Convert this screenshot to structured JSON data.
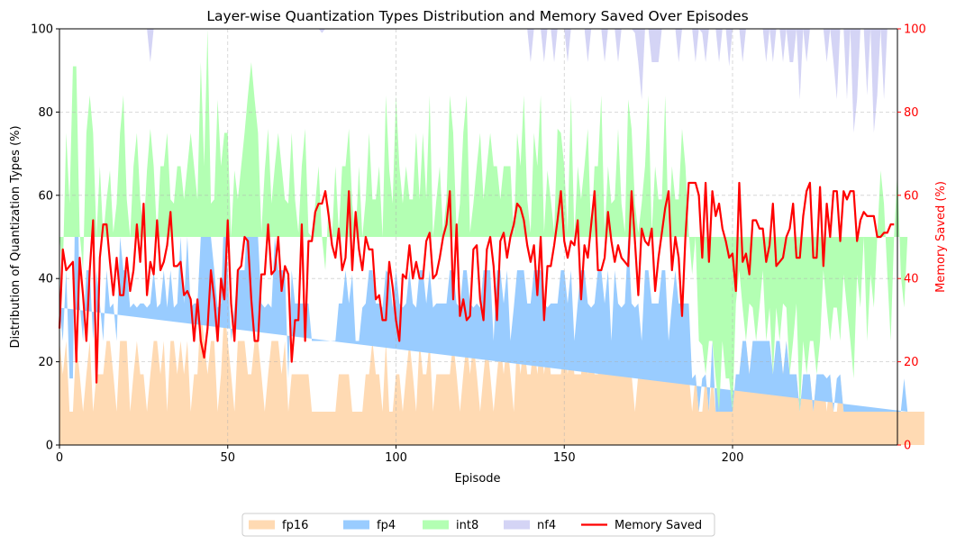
{
  "chart_data": {
    "type": "area",
    "title": "Layer-wise Quantization Types Distribution and Memory Saved Over Episodes",
    "xlabel": "Episode",
    "ylabel": "Distribution of Quantization Types (%)",
    "y2label": "Memory Saved (%)",
    "xlim": [
      0,
      249
    ],
    "ylim": [
      0,
      100
    ],
    "y2lim": [
      0,
      100
    ],
    "xticks": [
      0,
      50,
      100,
      150,
      200
    ],
    "yticks": [
      0,
      20,
      40,
      60,
      80,
      100
    ],
    "y2ticks": [
      0,
      20,
      40,
      60,
      80,
      100
    ],
    "grid": true,
    "legend_position": "bottom-center",
    "episodes_start": 0,
    "episodes_step": 1,
    "series": [
      {
        "name": "fp16",
        "color": "#ffdab3",
        "kind": "stacked-area",
        "values": [
          25,
          17,
          25,
          8,
          8,
          25,
          17,
          8,
          17,
          25,
          8,
          17,
          17,
          17,
          25,
          25,
          17,
          8,
          25,
          25,
          25,
          8,
          17,
          25,
          17,
          17,
          8,
          17,
          25,
          25,
          17,
          25,
          8,
          25,
          25,
          17,
          25,
          17,
          25,
          8,
          17,
          17,
          33,
          25,
          17,
          25,
          25,
          8,
          17,
          33,
          25,
          17,
          8,
          25,
          25,
          25,
          17,
          17,
          25,
          25,
          17,
          8,
          17,
          25,
          25,
          25,
          17,
          25,
          8,
          17,
          17,
          17,
          17,
          17,
          17,
          8,
          8,
          8,
          8,
          8,
          8,
          8,
          8,
          17,
          17,
          17,
          17,
          8,
          8,
          8,
          8,
          17,
          17,
          25,
          17,
          17,
          8,
          25,
          8,
          8,
          17,
          17,
          8,
          17,
          25,
          17,
          8,
          25,
          17,
          17,
          25,
          8,
          17,
          17,
          17,
          17,
          17,
          25,
          17,
          8,
          17,
          25,
          17,
          25,
          17,
          8,
          17,
          25,
          17,
          8,
          17,
          25,
          17,
          25,
          17,
          8,
          25,
          17,
          25,
          17,
          17,
          25,
          17,
          25,
          17,
          25,
          17,
          17,
          17,
          17,
          25,
          17,
          25,
          17,
          17,
          17,
          25,
          17,
          25,
          17,
          17,
          25,
          17,
          25,
          17,
          17,
          17,
          25,
          17,
          25,
          17,
          8,
          17,
          17,
          25,
          17,
          17,
          17,
          17,
          17,
          25,
          17,
          17,
          25,
          17,
          17,
          17,
          17,
          8,
          17,
          8,
          8,
          17,
          8,
          17,
          8,
          8,
          8,
          8,
          8,
          8,
          17,
          17,
          25,
          25,
          17,
          25,
          17,
          25,
          25,
          17,
          25,
          17,
          17,
          25,
          17,
          25,
          17,
          17,
          17,
          8,
          17,
          17,
          17,
          8,
          17,
          17,
          17,
          8,
          17,
          8,
          8,
          17,
          8,
          8,
          8,
          8,
          8,
          8,
          8,
          8,
          8,
          8,
          8,
          8,
          8,
          8,
          8,
          8,
          8,
          8,
          8,
          8,
          8,
          8,
          8,
          8,
          8
        ]
      },
      {
        "name": "fp4",
        "color": "#99ccff",
        "kind": "stacked-area",
        "values": [
          8,
          8,
          17,
          8,
          8,
          58,
          17,
          17,
          25,
          17,
          17,
          25,
          17,
          8,
          17,
          8,
          17,
          17,
          25,
          17,
          17,
          25,
          17,
          8,
          17,
          17,
          25,
          17,
          17,
          8,
          17,
          17,
          25,
          17,
          8,
          17,
          25,
          17,
          25,
          25,
          17,
          17,
          17,
          25,
          58,
          25,
          17,
          25,
          17,
          25,
          17,
          8,
          25,
          17,
          17,
          17,
          42,
          58,
          25,
          25,
          17,
          25,
          17,
          8,
          25,
          17,
          25,
          17,
          8,
          25,
          17,
          17,
          17,
          17,
          17,
          17,
          17,
          17,
          17,
          17,
          17,
          17,
          17,
          17,
          17,
          25,
          17,
          33,
          17,
          17,
          25,
          17,
          25,
          17,
          17,
          17,
          25,
          17,
          33,
          25,
          25,
          17,
          25,
          17,
          17,
          17,
          25,
          17,
          25,
          17,
          17,
          25,
          17,
          17,
          17,
          17,
          25,
          17,
          17,
          25,
          25,
          17,
          17,
          8,
          17,
          25,
          25,
          17,
          25,
          17,
          25,
          17,
          17,
          17,
          8,
          25,
          17,
          25,
          17,
          17,
          17,
          17,
          25,
          17,
          17,
          8,
          17,
          17,
          17,
          25,
          17,
          17,
          17,
          8,
          17,
          25,
          17,
          17,
          8,
          17,
          25,
          17,
          17,
          17,
          8,
          25,
          17,
          8,
          17,
          25,
          17,
          25,
          17,
          8,
          17,
          25,
          17,
          17,
          17,
          25,
          17,
          8,
          17,
          17,
          17,
          17,
          17,
          17,
          8,
          0,
          0,
          8,
          0,
          0,
          8,
          0,
          0,
          0,
          0,
          0,
          0,
          0,
          0,
          0,
          0,
          0,
          0,
          8,
          0,
          0,
          8,
          0,
          0,
          8,
          0,
          0,
          0,
          0,
          0,
          0,
          0,
          0,
          0,
          0,
          0,
          0,
          0,
          0,
          8,
          0,
          0,
          8,
          0,
          0,
          0,
          0,
          0,
          0,
          0,
          0,
          0,
          0,
          0,
          0,
          0,
          0,
          0,
          0,
          0,
          0,
          0,
          8,
          0
        ]
      },
      {
        "name": "int8",
        "color": "#b3ffb3",
        "kind": "stacked-area",
        "values": [
          17,
          17,
          33,
          42,
          75,
          8,
          17,
          17,
          33,
          42,
          50,
          8,
          33,
          25,
          17,
          33,
          17,
          33,
          25,
          42,
          17,
          17,
          33,
          42,
          25,
          17,
          33,
          42,
          25,
          17,
          33,
          25,
          42,
          17,
          25,
          33,
          17,
          25,
          17,
          42,
          33,
          25,
          42,
          17,
          25,
          8,
          17,
          50,
          33,
          17,
          33,
          25,
          33,
          17,
          25,
          33,
          25,
          17,
          33,
          25,
          17,
          33,
          42,
          25,
          17,
          33,
          25,
          17,
          42,
          33,
          25,
          17,
          33,
          42,
          17,
          25,
          33,
          42,
          25,
          17,
          33,
          25,
          42,
          17,
          33,
          25,
          42,
          17,
          25,
          42,
          17,
          25,
          33,
          17,
          25,
          33,
          17,
          42,
          25,
          25,
          42,
          33,
          25,
          33,
          17,
          25,
          42,
          17,
          33,
          25,
          42,
          17,
          25,
          33,
          17,
          25,
          42,
          33,
          17,
          25,
          33,
          42,
          17,
          25,
          33,
          42,
          17,
          25,
          33,
          42,
          25,
          17,
          33,
          25,
          42,
          17,
          33,
          25,
          42,
          25,
          17,
          33,
          25,
          42,
          17,
          33,
          25,
          17,
          42,
          33,
          25,
          17,
          42,
          25,
          33,
          17,
          25,
          42,
          17,
          33,
          25,
          42,
          17,
          25,
          33,
          17,
          42,
          25,
          17,
          33,
          42,
          25,
          17,
          33,
          25,
          42,
          17,
          33,
          25,
          17,
          42,
          25,
          33,
          17,
          25,
          42,
          33,
          17,
          25,
          33,
          17,
          8,
          0,
          17,
          0,
          8,
          0,
          17,
          8,
          8,
          0,
          17,
          25,
          8,
          0,
          17,
          8,
          0,
          8,
          17,
          0,
          8,
          0,
          8,
          0,
          17,
          8,
          0,
          8,
          17,
          0,
          8,
          0,
          8,
          17,
          0,
          8,
          25,
          17,
          8,
          25,
          17,
          8,
          33,
          25,
          17,
          8,
          33,
          25,
          42,
          17,
          33,
          25,
          42,
          58,
          50,
          33,
          17,
          42,
          58,
          33,
          17,
          42,
          25,
          58,
          66
        ]
      },
      {
        "name": "nf4",
        "color": "#d4d4f5",
        "kind": "stacked-area",
        "values": [
          50,
          58,
          25,
          42,
          9,
          9,
          49,
          58,
          25,
          16,
          25,
          50,
          33,
          50,
          41,
          34,
          49,
          42,
          25,
          16,
          41,
          50,
          33,
          25,
          41,
          49,
          34,
          16,
          33,
          50,
          33,
          33,
          25,
          41,
          42,
          33,
          33,
          41,
          33,
          25,
          33,
          41,
          8,
          33,
          0,
          42,
          41,
          17,
          33,
          25,
          25,
          50,
          34,
          41,
          41,
          25,
          16,
          8,
          17,
          25,
          49,
          34,
          24,
          42,
          33,
          25,
          41,
          41,
          42,
          25,
          41,
          49,
          33,
          24,
          49,
          50,
          42,
          33,
          49,
          58,
          42,
          50,
          33,
          49,
          33,
          33,
          24,
          42,
          50,
          33,
          50,
          41,
          25,
          41,
          41,
          33,
          50,
          16,
          34,
          42,
          16,
          33,
          42,
          33,
          41,
          41,
          25,
          41,
          25,
          50,
          16,
          50,
          41,
          33,
          49,
          41,
          16,
          25,
          49,
          42,
          25,
          16,
          49,
          42,
          33,
          25,
          41,
          33,
          25,
          33,
          41,
          41,
          33,
          33,
          33,
          50,
          25,
          33,
          16,
          41,
          41,
          25,
          33,
          16,
          41,
          34,
          42,
          41,
          25,
          25,
          33,
          41,
          16,
          50,
          33,
          41,
          33,
          16,
          50,
          33,
          33,
          16,
          41,
          33,
          50,
          41,
          16,
          42,
          49,
          33,
          33,
          41,
          41,
          25,
          33,
          33,
          41,
          25,
          33,
          41,
          16,
          50,
          33,
          41,
          33,
          25,
          33,
          50,
          59,
          42,
          83,
          75,
          75,
          83,
          76,
          92,
          84,
          75,
          92,
          75,
          92,
          75,
          75,
          59,
          75,
          66,
          75,
          75,
          75,
          67,
          67,
          75,
          75,
          83,
          75,
          58,
          75,
          75,
          67,
          75,
          75,
          92,
          75,
          75,
          75,
          92,
          75,
          67,
          59,
          75,
          59,
          50,
          84,
          75,
          50,
          75,
          59,
          42,
          84,
          50,
          59,
          92,
          42,
          34,
          42,
          25,
          59,
          75,
          50,
          34,
          59,
          76,
          50,
          33,
          34,
          26
        ]
      },
      {
        "name": "Memory Saved",
        "color": "#ff0000",
        "kind": "line",
        "axis": "right",
        "values": [
          28,
          47,
          42,
          43,
          44,
          20,
          45,
          36,
          25,
          42,
          54,
          15,
          45,
          53,
          53,
          44,
          36,
          45,
          36,
          36,
          45,
          37,
          42,
          53,
          44,
          58,
          36,
          44,
          41,
          54,
          42,
          44,
          48,
          56,
          43,
          43,
          44,
          36,
          37,
          35,
          25,
          35,
          25,
          21,
          28,
          42,
          35,
          25,
          40,
          35,
          54,
          34,
          25,
          42,
          43,
          50,
          49,
          35,
          25,
          25,
          41,
          41,
          53,
          41,
          42,
          50,
          37,
          43,
          41,
          20,
          30,
          30,
          53,
          25,
          49,
          49,
          56,
          58,
          58,
          61,
          55,
          48,
          45,
          52,
          42,
          45,
          61,
          42,
          56,
          47,
          42,
          50,
          47,
          47,
          35,
          36,
          30,
          30,
          44,
          38,
          30,
          25,
          41,
          40,
          48,
          40,
          44,
          40,
          40,
          49,
          51,
          40,
          41,
          45,
          50,
          53,
          61,
          35,
          53,
          31,
          35,
          30,
          31,
          47,
          48,
          35,
          30,
          47,
          50,
          43,
          30,
          49,
          51,
          45,
          50,
          53,
          58,
          57,
          54,
          48,
          44,
          48,
          36,
          50,
          30,
          43,
          43,
          48,
          54,
          61,
          49,
          45,
          49,
          48,
          54,
          35,
          48,
          45,
          53,
          61,
          42,
          42,
          45,
          56,
          49,
          44,
          48,
          45,
          44,
          43,
          61,
          49,
          36,
          52,
          49,
          48,
          52,
          37,
          45,
          51,
          57,
          61,
          42,
          50,
          45,
          31,
          50,
          63,
          63,
          63,
          60,
          45,
          63,
          44,
          61,
          55,
          58,
          52,
          49,
          45,
          46,
          37,
          63,
          44,
          46,
          41,
          54,
          54,
          52,
          52,
          44,
          48,
          58,
          43,
          44,
          45,
          50,
          52,
          58,
          45,
          45,
          55,
          61,
          63,
          45,
          45,
          62,
          43,
          58,
          50,
          61,
          61,
          49,
          61,
          59,
          61,
          61,
          49,
          54,
          56,
          55,
          55,
          55,
          50,
          50,
          51,
          51,
          53,
          53
        ]
      }
    ]
  }
}
